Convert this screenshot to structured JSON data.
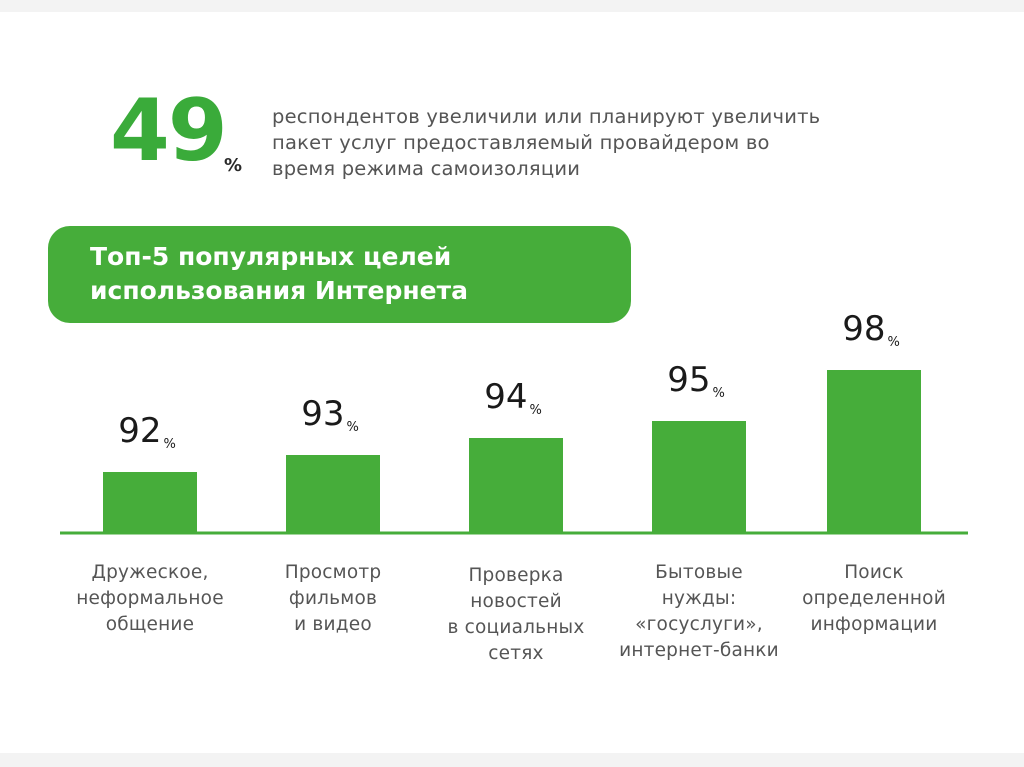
{
  "header": {
    "stat_value": "49",
    "stat_unit": "%",
    "stat_text": "респондентов увеличили или планируют увеличить пакет услуг предоставляемый провайдером во время режима самоизоляции"
  },
  "title_box": {
    "title": "Топ-5 популярных целей\nиспользования  Интернета"
  },
  "colors": {
    "accent": "#46ad3a",
    "stat": "#3aab3a",
    "text": "#555555"
  },
  "chart_data": {
    "type": "bar",
    "title": "Топ-5 популярных целей использования  Интернета",
    "categories": [
      "Дружеское,\nнеформальное\nобщение",
      "Просмотр\nфильмов\nи видео",
      "Проверка\nновостей\nв социальных\nсетях",
      "Бытовые\nнужды:\n«госуслуги»,\nинтернет-банки",
      "Поиск\nопределенной\nинформации"
    ],
    "values": [
      92,
      93,
      94,
      95,
      98
    ],
    "value_labels": [
      "92",
      "93",
      "94",
      "95",
      "98"
    ],
    "unit": "%",
    "xlabel": "",
    "ylabel": "",
    "grid": false,
    "legend": "none"
  }
}
